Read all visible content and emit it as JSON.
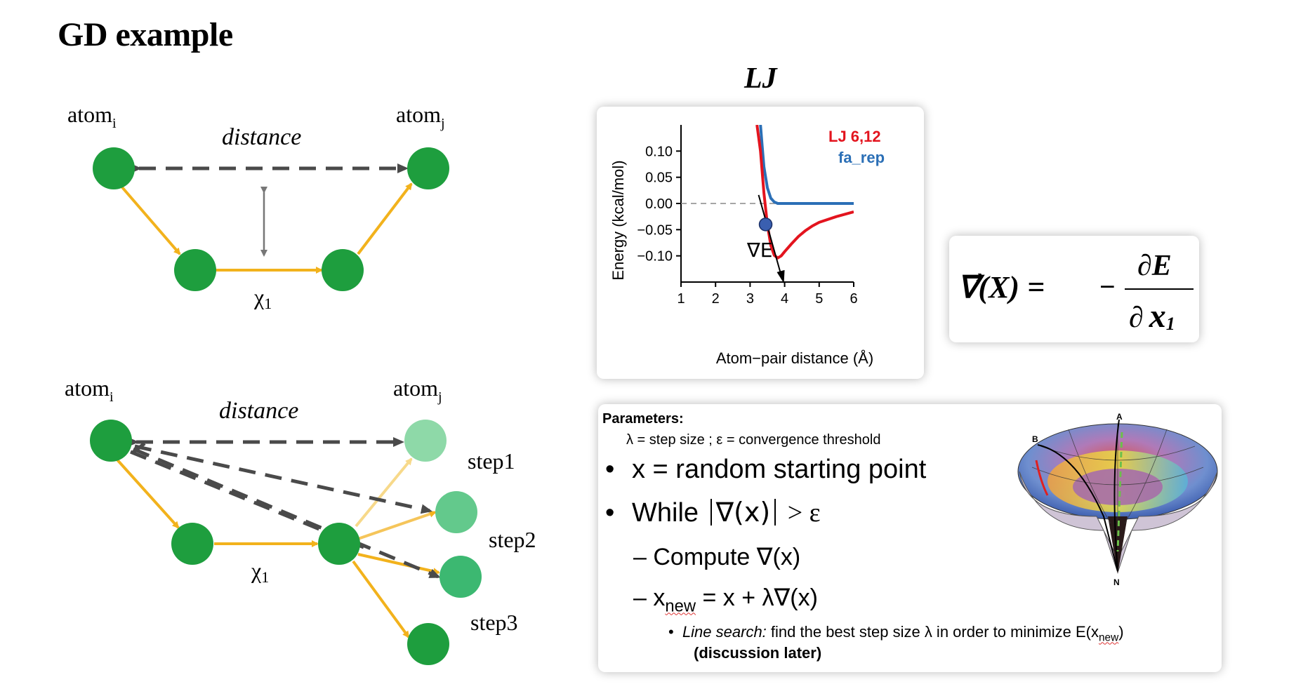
{
  "slide": {
    "title": "GD example",
    "lj_title": "LJ"
  },
  "top_diagram": {
    "atom_i": "atom",
    "atom_i_sub": "i",
    "atom_j": "atom",
    "atom_j_sub": "j",
    "distance_label": "distance",
    "chi_label": "χ",
    "chi_sub": "1"
  },
  "bottom_diagram": {
    "atom_i": "atom",
    "atom_i_sub": "i",
    "atom_j": "atom",
    "atom_j_sub": "j",
    "distance_label": "distance",
    "chi_label": "χ",
    "chi_sub": "1",
    "step1": "step1",
    "step2": "step2",
    "step3": "step3"
  },
  "colors": {
    "atom_green": "#1e9e3e",
    "bond_orange": "#f2b21c",
    "dashed_gray": "#4a4a4a",
    "lj_red": "#e3141e",
    "farep_blue": "#2b6fb6"
  },
  "chart_data": {
    "type": "line",
    "xlabel": "Atom−pair distance (Å)",
    "ylabel": "Energy (kcal/mol)",
    "xlim": [
      1,
      6
    ],
    "ylim": [
      -0.15,
      0.15
    ],
    "x_ticks": [
      "1",
      "2",
      "3",
      "4",
      "5",
      "6"
    ],
    "y_ticks": [
      "0.10",
      "0.05",
      "0.00",
      "−0.05",
      "−0.10"
    ],
    "y_tick_values": [
      0.1,
      0.05,
      0.0,
      -0.05,
      -0.1
    ],
    "series": [
      {
        "name": "LJ 6,12",
        "color": "#e3141e",
        "x": [
          3.2,
          3.3,
          3.4,
          3.5,
          3.6,
          3.7,
          3.8,
          3.9,
          4.0,
          4.2,
          4.4,
          4.6,
          4.8,
          5.0,
          5.5,
          6.0
        ],
        "y": [
          0.15,
          0.1,
          0.02,
          -0.04,
          -0.08,
          -0.099,
          -0.104,
          -0.1,
          -0.092,
          -0.077,
          -0.063,
          -0.052,
          -0.043,
          -0.036,
          -0.025,
          -0.016
        ]
      },
      {
        "name": "fa_rep",
        "color": "#2b6fb6",
        "x": [
          3.3,
          3.35,
          3.4,
          3.5,
          3.6,
          3.7,
          3.8,
          4.0,
          5.0,
          6.0
        ],
        "y": [
          0.15,
          0.11,
          0.07,
          0.03,
          0.01,
          0.003,
          0.0,
          0.0,
          0.0,
          0.0
        ]
      }
    ],
    "annotation": "∇E",
    "gradient_point": {
      "x": 3.45,
      "y": -0.04
    }
  },
  "formula": {
    "lhs": "∇⃗(X) =",
    "minus": "−",
    "numerator": "∂E",
    "denominator_d": "∂",
    "denominator_x": "x",
    "denominator_sub": "1"
  },
  "algorithm": {
    "parameters_heading": "Parameters:",
    "parameters_line": "λ = step size  ;  ε = convergence threshold",
    "bullet1": "x = random starting point",
    "bullet2_a": "While",
    "bullet2_b": "∇(x)",
    "bullet2_c": "> ε",
    "sub1": "– Compute ∇(x)",
    "sub2_a": "– x",
    "sub2_sub": "new",
    "sub2_b": " = x + λ∇(x)",
    "sub3_label": "Line search:",
    "sub3_text": " find the best step size λ in order to minimize E(x",
    "sub3_sub": "new",
    "sub3_end": ")",
    "sub4": "(discussion later)",
    "surface_labels": {
      "a": "A",
      "b": "B",
      "n": "N"
    }
  }
}
